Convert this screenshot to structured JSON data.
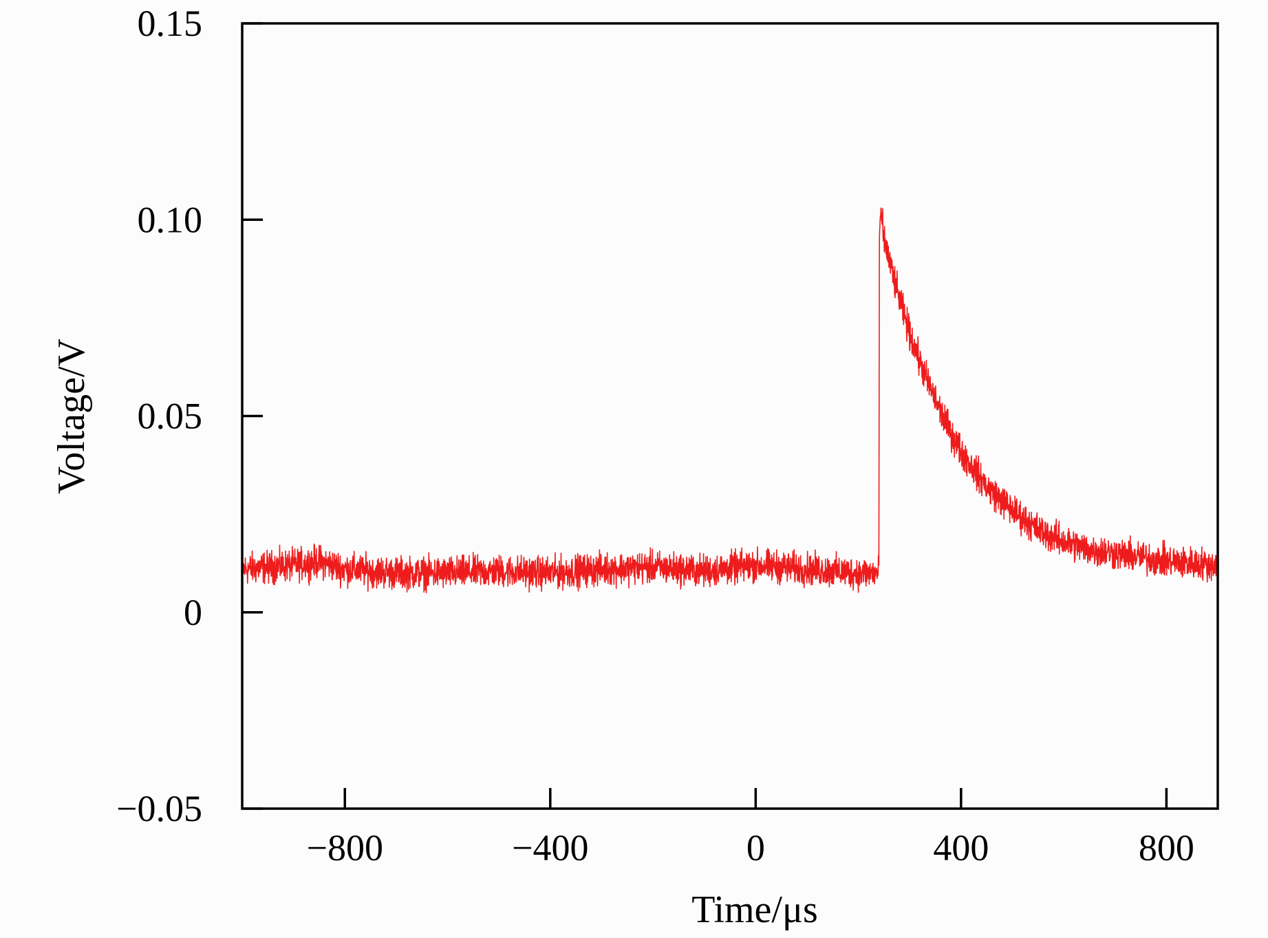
{
  "chart_data": {
    "type": "line",
    "title": "",
    "xlabel": "Time/μs",
    "ylabel": "Voltage/V",
    "xlim": [
      -1000,
      900
    ],
    "ylim": [
      -0.05,
      0.15
    ],
    "x_ticks": [
      -800,
      -400,
      0,
      400,
      800
    ],
    "x_tick_labels": [
      "−800",
      "−400",
      "0",
      "400",
      "800"
    ],
    "y_ticks": [
      -0.05,
      0,
      0.05,
      0.1,
      0.15
    ],
    "y_tick_labels": [
      "−0.05",
      "0",
      "0.05",
      "0.10",
      "0.15"
    ],
    "grid": false,
    "legend": "none",
    "series": [
      {
        "color": "#ee1c1c",
        "noise_band": 0.006,
        "x": [
          -1000,
          -900,
          -850,
          -800,
          -700,
          -600,
          -500,
          -400,
          -300,
          -200,
          -100,
          0,
          100,
          200,
          240,
          241,
          245,
          250,
          275,
          300,
          325,
          350,
          375,
          400,
          450,
          500,
          550,
          600,
          650,
          700,
          750,
          800,
          850,
          900
        ],
        "values": [
          0.011,
          0.012,
          0.013,
          0.011,
          0.01,
          0.01,
          0.0105,
          0.01,
          0.011,
          0.0115,
          0.0105,
          0.012,
          0.011,
          0.01,
          0.01,
          0.097,
          0.101,
          0.095,
          0.082,
          0.071,
          0.062,
          0.054,
          0.047,
          0.041,
          0.032,
          0.026,
          0.021,
          0.018,
          0.016,
          0.015,
          0.014,
          0.013,
          0.0125,
          0.012
        ]
      }
    ]
  }
}
